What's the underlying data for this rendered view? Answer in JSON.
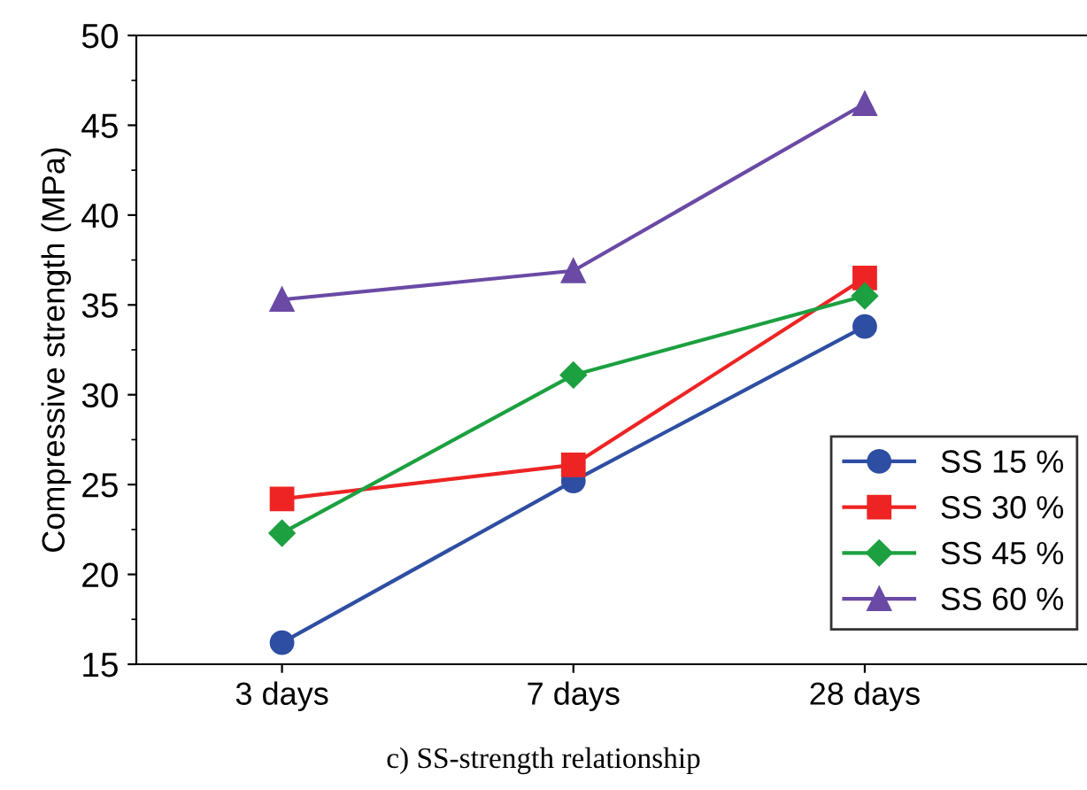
{
  "chart_data": {
    "type": "line",
    "ylabel": "Compressive strength (MPa)",
    "categories": [
      "3 days",
      "7 days",
      "28 days"
    ],
    "series": [
      {
        "name": "SS 15 %",
        "color": "#2e4ea3",
        "marker": "circle",
        "values": [
          16.2,
          25.2,
          33.8
        ]
      },
      {
        "name": "SS 30 %",
        "color": "#ee2424",
        "marker": "square",
        "values": [
          24.2,
          26.1,
          36.5
        ]
      },
      {
        "name": "SS 45 %",
        "color": "#1ca040",
        "marker": "diamond",
        "values": [
          22.3,
          31.1,
          35.5
        ]
      },
      {
        "name": "SS 60 %",
        "color": "#6a4aa5",
        "marker": "triangle",
        "values": [
          35.3,
          36.9,
          46.2
        ]
      }
    ],
    "ylim": [
      15,
      50
    ],
    "yticks": [
      15,
      20,
      25,
      30,
      35,
      40,
      45,
      50
    ],
    "grid": false,
    "legend": "bottom right",
    "annotations": [
      "c) SS-strength relationship"
    ]
  }
}
